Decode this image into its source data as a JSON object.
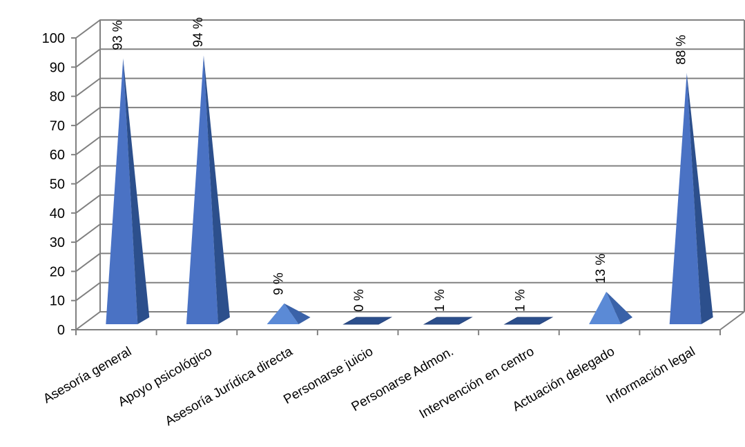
{
  "chart_data": {
    "type": "bar",
    "style": "3d-pyramid",
    "categories": [
      "Asesoría general",
      "Apoyo psicológico",
      "Asesoría Jurídica directa",
      "Personarse juicio",
      "Personarse Admon.",
      "Intervención en centro",
      "Actuación delegado",
      "Información legal"
    ],
    "values": [
      93,
      94,
      9,
      0,
      1,
      1,
      13,
      88
    ],
    "data_labels": [
      "93 %",
      "94 %",
      "9 %",
      "0 %",
      "1 %",
      "1 %",
      "13 %",
      "88 %"
    ],
    "y_ticks": [
      "0",
      "10",
      "20",
      "30",
      "40",
      "50",
      "60",
      "70",
      "80",
      "90",
      "100"
    ],
    "ylim": [
      0,
      100
    ],
    "grid": true,
    "legend": "none",
    "colors": {
      "front": "#4a72c4",
      "side": "#2c4f8c",
      "front_light": "#5b8ad6",
      "side_light": "#3a62a8",
      "grid": "#808080"
    }
  }
}
